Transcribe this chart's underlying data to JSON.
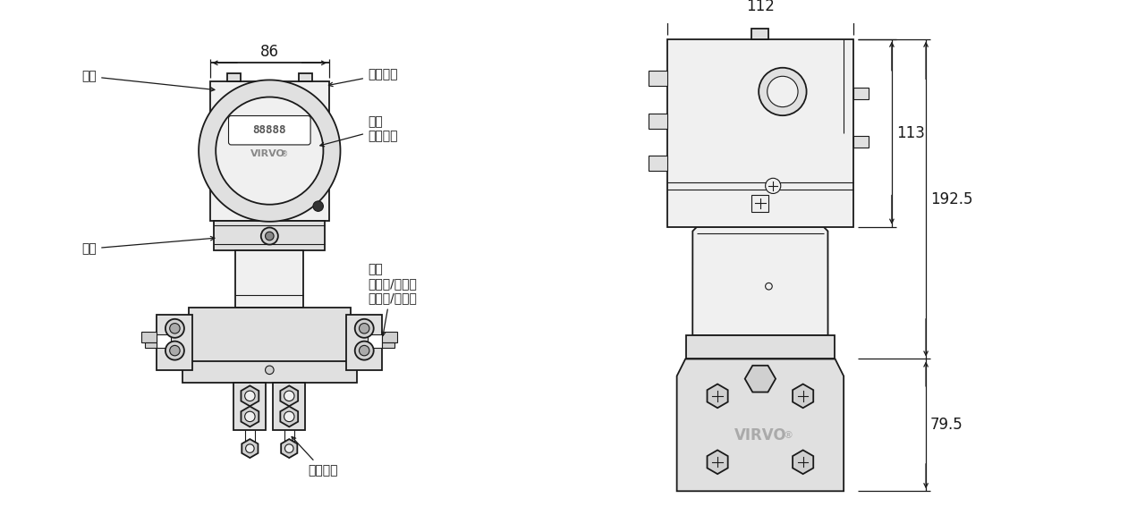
{
  "bg_color": "#ffffff",
  "lc": "#1a1a1a",
  "gray1": "#f0f0f0",
  "gray2": "#e0e0e0",
  "gray3": "#d0d0d0",
  "virvo_gray": "#aaaaaa",
  "dim_86": "86",
  "dim_112": "112",
  "dim_113": "113",
  "dim_192_5": "192.5",
  "dim_79_5": "79.5",
  "label_mingpai": "铭牌",
  "label_yaopai": "腰牌",
  "label_dianqi": "电气连接",
  "label_xuanxiang_shuzi": "选项\n数字表头",
  "label_xuanxiang_valve": "选项\n上排气/排液阀\n下排气/排液阀",
  "label_guocheng": "过程连接"
}
